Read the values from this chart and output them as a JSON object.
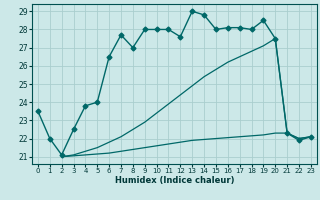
{
  "xlabel": "Humidex (Indice chaleur)",
  "bg_color": "#cce8e8",
  "grid_color": "#aacece",
  "line_color": "#006868",
  "x_ticks": [
    0,
    1,
    2,
    3,
    4,
    5,
    6,
    7,
    8,
    9,
    10,
    11,
    12,
    13,
    14,
    15,
    16,
    17,
    18,
    19,
    20,
    21,
    22,
    23
  ],
  "y_ticks": [
    21,
    22,
    23,
    24,
    25,
    26,
    27,
    28,
    29
  ],
  "ylim": [
    20.6,
    29.4
  ],
  "xlim": [
    -0.5,
    23.5
  ],
  "series1_x": [
    0,
    1,
    2,
    3,
    4,
    5,
    6,
    7,
    8,
    9,
    10,
    11,
    12,
    13,
    14,
    15,
    16,
    17,
    18,
    19,
    20,
    21,
    22,
    23
  ],
  "series1_y": [
    23.5,
    22.0,
    21.1,
    22.5,
    23.8,
    24.0,
    26.5,
    27.7,
    27.0,
    28.0,
    28.0,
    28.0,
    27.6,
    29.0,
    28.8,
    28.0,
    28.1,
    28.1,
    28.0,
    28.5,
    27.5,
    22.3,
    21.9,
    22.1
  ],
  "series2_x": [
    2,
    3,
    4,
    5,
    6,
    7,
    8,
    9,
    10,
    11,
    12,
    13,
    14,
    15,
    16,
    17,
    18,
    19,
    20,
    21,
    22,
    23
  ],
  "series2_y": [
    21.0,
    21.1,
    21.3,
    21.5,
    21.8,
    22.1,
    22.5,
    22.9,
    23.4,
    23.9,
    24.4,
    24.9,
    25.4,
    25.8,
    26.2,
    26.5,
    26.8,
    27.1,
    27.5,
    22.3,
    22.0,
    22.1
  ],
  "series3_x": [
    2,
    3,
    4,
    5,
    6,
    7,
    8,
    9,
    10,
    11,
    12,
    13,
    14,
    15,
    16,
    17,
    18,
    19,
    20,
    21,
    22,
    23
  ],
  "series3_y": [
    21.0,
    21.05,
    21.1,
    21.15,
    21.2,
    21.3,
    21.4,
    21.5,
    21.6,
    21.7,
    21.8,
    21.9,
    21.95,
    22.0,
    22.05,
    22.1,
    22.15,
    22.2,
    22.3,
    22.3,
    22.0,
    22.1
  ],
  "xlabel_fontsize": 6,
  "tick_fontsize": 5
}
